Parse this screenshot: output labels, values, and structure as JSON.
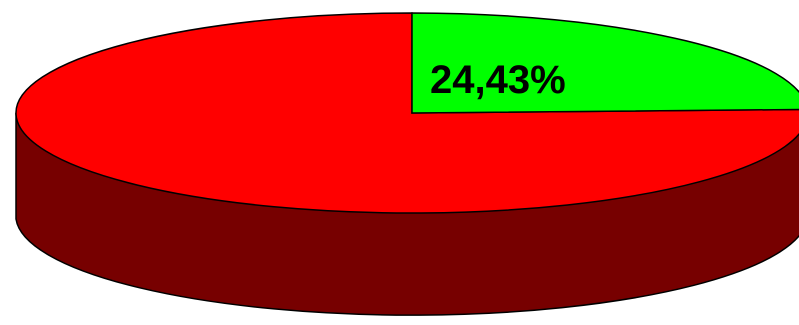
{
  "chart_data": {
    "type": "pie",
    "style": "3d",
    "slices": [
      {
        "value": 24.43,
        "label": "24,43%",
        "color": "#00ff00",
        "side_color": "#007700"
      },
      {
        "value": 75.57,
        "label": "",
        "color": "#ff0000",
        "side_color": "#770000"
      }
    ],
    "legend": "none",
    "title": ""
  }
}
